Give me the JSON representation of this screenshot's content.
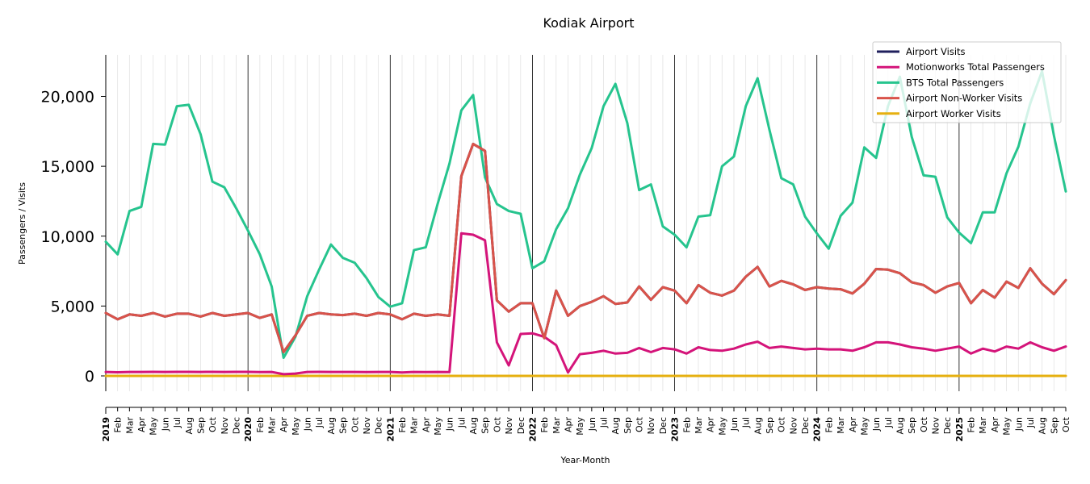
{
  "chart_data": {
    "type": "line",
    "title": "Kodiak Airport",
    "xlabel": "Year-Month",
    "ylabel": "Passengers / Visits",
    "ylim": [
      -1200,
      23000
    ],
    "yticks": [
      "0",
      "5,000",
      "10,000",
      "15,000",
      "20,000"
    ],
    "ytick_values": [
      0,
      5000,
      10000,
      15000,
      20000
    ],
    "grid": "vertical monthly gridlines, darker lines at year starts",
    "legend_position": "top-right",
    "x": [
      "2019",
      "Feb",
      "Mar",
      "Apr",
      "May",
      "Jun",
      "Jul",
      "Aug",
      "Sep",
      "Oct",
      "Nov",
      "Dec",
      "2020",
      "Feb",
      "Mar",
      "Apr",
      "May",
      "Jun",
      "Jul",
      "Aug",
      "Sep",
      "Oct",
      "Nov",
      "Dec",
      "2021",
      "Feb",
      "Mar",
      "Apr",
      "May",
      "Jun",
      "Jul",
      "Aug",
      "Sep",
      "Oct",
      "Nov",
      "Dec",
      "2022",
      "Feb",
      "Mar",
      "Apr",
      "May",
      "Jun",
      "Jul",
      "Aug",
      "Sep",
      "Oct",
      "Nov",
      "Dec",
      "2023",
      "Feb",
      "Mar",
      "Apr",
      "May",
      "Jun",
      "Jul",
      "Aug",
      "Sep",
      "Oct",
      "Nov",
      "Dec",
      "2024",
      "Feb",
      "Mar",
      "Apr",
      "May",
      "Jun",
      "Jul",
      "Aug",
      "Sep",
      "Oct",
      "Nov",
      "Dec",
      "2025",
      "Feb",
      "Mar",
      "Apr",
      "May",
      "Jun",
      "Jul",
      "Aug",
      "Sep",
      "Oct"
    ],
    "series": [
      {
        "name": "Airport Visits",
        "color": "#1f1f5c",
        "values": [
          4500,
          4050,
          4400,
          4300,
          4500,
          4250,
          4450,
          4450,
          4250,
          4500,
          4300,
          4400,
          4500,
          4150,
          4400,
          1700,
          2900,
          4300,
          4500,
          4400,
          4350,
          4450,
          4300,
          4500,
          4400,
          4050,
          4450,
          4300,
          4400,
          4300,
          14300,
          16600,
          16100,
          5400,
          4600,
          5200,
          5200,
          2700,
          6100,
          4300,
          5000,
          5300,
          5700,
          5150,
          5250,
          6400,
          5450,
          6350,
          6100,
          5200,
          6500,
          5950,
          5750,
          6100,
          7100,
          7800,
          6400,
          6800,
          6550,
          6150,
          6350,
          6250,
          6200,
          5900,
          6600,
          7650,
          7600,
          7350,
          6700,
          6500,
          5950,
          6400,
          6650,
          5200,
          6150,
          5600,
          6750,
          6300,
          7700,
          6600,
          5850,
          6850
        ]
      },
      {
        "name": "Motionworks Total Passengers",
        "color": "#d4147a",
        "values": [
          280,
          260,
          280,
          280,
          290,
          280,
          290,
          290,
          280,
          290,
          280,
          290,
          290,
          270,
          280,
          120,
          170,
          280,
          290,
          280,
          280,
          280,
          270,
          280,
          280,
          250,
          280,
          270,
          280,
          270,
          10200,
          10100,
          9700,
          2400,
          750,
          3000,
          3050,
          2800,
          2200,
          250,
          1550,
          1650,
          1800,
          1600,
          1650,
          2000,
          1700,
          2000,
          1900,
          1600,
          2050,
          1850,
          1800,
          1950,
          2250,
          2450,
          2000,
          2100,
          2000,
          1900,
          1950,
          1900,
          1900,
          1800,
          2050,
          2400,
          2400,
          2250,
          2050,
          1950,
          1800,
          1950,
          2100,
          1600,
          1950,
          1750,
          2100,
          1950,
          2400,
          2050,
          1800,
          2100
        ]
      },
      {
        "name": "BTS Total Passengers",
        "color": "#26c48e",
        "values": [
          9600,
          8700,
          11800,
          12100,
          16600,
          16550,
          19300,
          19400,
          17300,
          13900,
          13500,
          12000,
          10400,
          8700,
          6400,
          1300,
          2800,
          5700,
          7600,
          9400,
          8450,
          8100,
          7000,
          5650,
          4950,
          5200,
          9000,
          9200,
          12300,
          15200,
          19000,
          20100,
          14200,
          12300,
          11800,
          11600,
          7700,
          8200,
          10500,
          12000,
          14400,
          16300,
          19300,
          20900,
          18100,
          13300,
          13700,
          10700,
          10100,
          9200,
          11400,
          11500,
          15000,
          15700,
          19300,
          21300,
          17600,
          14150,
          13700,
          11400,
          10200,
          9100,
          11450,
          12400,
          16350,
          15600,
          19300,
          21400,
          17100,
          14350,
          14250,
          11350,
          10250,
          9500,
          11700,
          11700,
          14500,
          16400,
          19500,
          21800,
          17200,
          13200
        ]
      },
      {
        "name": "Airport Non-Worker Visits",
        "color": "#d9534a",
        "values": [
          4500,
          4050,
          4400,
          4300,
          4500,
          4250,
          4450,
          4450,
          4250,
          4500,
          4300,
          4400,
          4500,
          4150,
          4400,
          1700,
          2900,
          4300,
          4500,
          4400,
          4350,
          4450,
          4300,
          4500,
          4400,
          4050,
          4450,
          4300,
          4400,
          4300,
          14300,
          16600,
          16100,
          5400,
          4600,
          5200,
          5200,
          2700,
          6100,
          4300,
          5000,
          5300,
          5700,
          5150,
          5250,
          6400,
          5450,
          6350,
          6100,
          5200,
          6500,
          5950,
          5750,
          6100,
          7100,
          7800,
          6400,
          6800,
          6550,
          6150,
          6350,
          6250,
          6200,
          5900,
          6600,
          7650,
          7600,
          7350,
          6700,
          6500,
          5950,
          6400,
          6650,
          5200,
          6150,
          5600,
          6750,
          6300,
          7700,
          6600,
          5850,
          6850
        ]
      },
      {
        "name": "Airport Worker Visits",
        "color": "#e6b010",
        "values": [
          0,
          0,
          0,
          0,
          0,
          0,
          0,
          0,
          0,
          0,
          0,
          0,
          0,
          0,
          0,
          0,
          0,
          0,
          0,
          0,
          0,
          0,
          0,
          0,
          0,
          0,
          0,
          0,
          0,
          0,
          0,
          0,
          0,
          0,
          0,
          0,
          0,
          0,
          0,
          0,
          0,
          0,
          0,
          0,
          0,
          0,
          0,
          0,
          0,
          0,
          0,
          0,
          0,
          0,
          0,
          0,
          0,
          0,
          0,
          0,
          0,
          0,
          0,
          0,
          0,
          0,
          0,
          0,
          0,
          0,
          0,
          0,
          0,
          0,
          0,
          0,
          0,
          0,
          0,
          0,
          0,
          0
        ]
      }
    ],
    "legend_order": [
      0,
      1,
      2,
      3,
      4
    ],
    "draw_order": [
      2,
      4,
      0,
      1,
      3
    ]
  }
}
